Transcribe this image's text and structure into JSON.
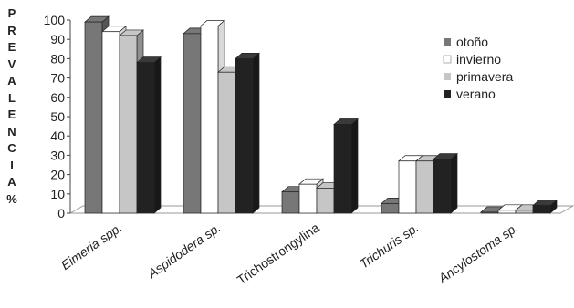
{
  "chart_data": {
    "type": "bar",
    "ylabel_letters": [
      "P",
      "R",
      "E",
      "V",
      "A",
      "L",
      "E",
      "N",
      "C",
      "I",
      "A",
      "%"
    ],
    "xlabel": "",
    "yticks": [
      "0",
      "10",
      "20",
      "30",
      "40",
      "50",
      "60",
      "70",
      "80",
      "90",
      "100"
    ],
    "ylim": [
      0,
      100
    ],
    "categories": [
      {
        "label": "Eimeria spp.",
        "italic_main": "Eimeria",
        "suffix": " spp."
      },
      {
        "label": "Aspidodera sp.",
        "italic_main": "Aspidodera",
        "suffix": " sp."
      },
      {
        "label": "Trichostrongylina",
        "italic_main": "",
        "suffix": "Trichostrongylina"
      },
      {
        "label": "Trichuris sp.",
        "italic_main": "Trichuris",
        "suffix": " sp."
      },
      {
        "label": "Ancylostoma sp.",
        "italic_main": "Ancylostoma",
        "suffix": " sp."
      }
    ],
    "series": [
      {
        "name": "otoño",
        "color": "#777777",
        "values": [
          99,
          93,
          11,
          5,
          0.5
        ]
      },
      {
        "name": "invierno",
        "color": "#ffffff",
        "values": [
          94,
          97,
          15,
          27,
          1.5
        ]
      },
      {
        "name": "primavera",
        "color": "#c6c6c6",
        "values": [
          92,
          73,
          13,
          27,
          1.5
        ]
      },
      {
        "name": "verano",
        "color": "#222222",
        "values": [
          78,
          80,
          46,
          28,
          4
        ]
      }
    ],
    "legend_position": "top-right",
    "grid": false
  }
}
